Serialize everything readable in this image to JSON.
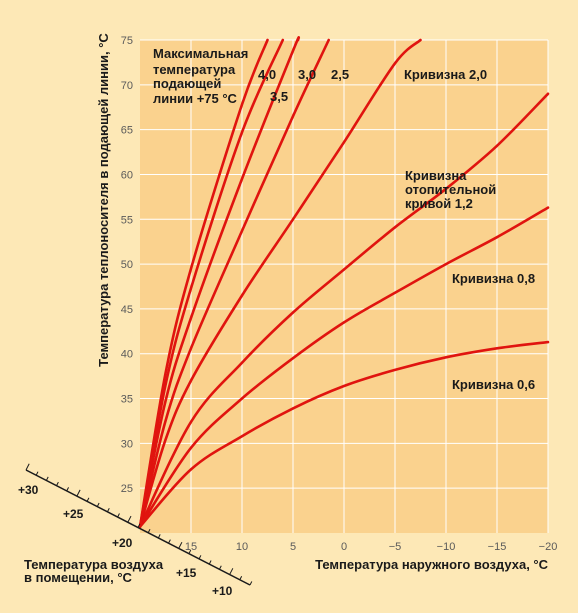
{
  "colors": {
    "page_bg": "#fde8b6",
    "plot_bg": "#fad28e",
    "grid": "#ffffff",
    "curve": "#e0140f",
    "text": "#1a1a1a",
    "tick": "#5a5a5a"
  },
  "chart_data": {
    "type": "line",
    "xlabel": "Температура наружного воздуха, °C",
    "ylabel": "Температура теплоносителя в подающей линии, °C",
    "xlim": [
      20,
      -20
    ],
    "ylim": [
      20,
      75
    ],
    "grid": true,
    "x_ticks": [
      {
        "value": 15,
        "label": "15"
      },
      {
        "value": 10,
        "label": "10"
      },
      {
        "value": 5,
        "label": "5"
      },
      {
        "value": 0,
        "label": "0"
      },
      {
        "value": -5,
        "label": "−5"
      },
      {
        "value": -10,
        "label": "−10"
      },
      {
        "value": -15,
        "label": "−15"
      },
      {
        "value": -20,
        "label": "−20"
      }
    ],
    "y_ticks": [
      25,
      30,
      35,
      40,
      45,
      50,
      55,
      60,
      65,
      70,
      75
    ],
    "series": [
      {
        "name": "0,6",
        "x": [
          20,
          15,
          10,
          5,
          0,
          -5,
          -10,
          -15,
          -20
        ],
        "y": [
          20.7,
          27.1,
          30.8,
          33.9,
          36.4,
          38.2,
          39.6,
          40.6,
          41.3
        ]
      },
      {
        "name": "0,8",
        "x": [
          20,
          15,
          10,
          5,
          0,
          -5,
          -10,
          -15,
          -20
        ],
        "y": [
          20.7,
          29.5,
          35.0,
          39.5,
          43.5,
          46.8,
          50.0,
          53.0,
          56.3
        ]
      },
      {
        "name": "1,2",
        "x": [
          20,
          15,
          10,
          5,
          0,
          -5,
          -10,
          -15,
          -20
        ],
        "y": [
          20.7,
          32.4,
          39.0,
          44.6,
          49.4,
          54.1,
          58.4,
          63.2,
          69.0
        ]
      },
      {
        "name": "2,0",
        "x": [
          20,
          17.5,
          15,
          10,
          5,
          0,
          -5,
          -7.5
        ],
        "y": [
          20.7,
          30.4,
          37.0,
          46.5,
          55.0,
          63.6,
          72.4,
          75.0
        ]
      },
      {
        "name": "2,5",
        "x": [
          20,
          17.5,
          15,
          10,
          5,
          1.5
        ],
        "y": [
          20.7,
          32.5,
          40.6,
          53.7,
          66.5,
          75.0
        ]
      },
      {
        "name": "3,0",
        "x": [
          20,
          17.5,
          15,
          10,
          5,
          4.5
        ],
        "y": [
          20.7,
          34.7,
          44.0,
          59.5,
          73.8,
          75.0
        ]
      },
      {
        "name": "3,5",
        "x": [
          20,
          17.5,
          15,
          10,
          6.0
        ],
        "y": [
          20.7,
          36.5,
          47.3,
          64.7,
          75.0
        ]
      },
      {
        "name": "4,0",
        "x": [
          20,
          17.5,
          15,
          10,
          7.5
        ],
        "y": [
          20.7,
          37.8,
          49.5,
          67.8,
          75.0
        ]
      }
    ],
    "annotations": {
      "max_temp": [
        "Максимальная",
        "температура",
        "подающей",
        "линии +75 °C"
      ],
      "curvature_top": [
        "4,0",
        "3,0",
        "2,5"
      ],
      "curvature_35": "3,5",
      "curve_20": "Кривизна 2,0",
      "curve_12": [
        "Кривизна",
        "отопительной",
        "кривой 1,2"
      ],
      "curve_08": "Кривизна 0,8",
      "curve_06": "Кривизна 0,6"
    },
    "room_axis": {
      "label": [
        "Температура воздуха",
        "в помещении, °C"
      ],
      "upper_ticks": [
        "+30",
        "+25",
        "+20"
      ],
      "lower_ticks": [
        "+15",
        "+10"
      ]
    }
  }
}
